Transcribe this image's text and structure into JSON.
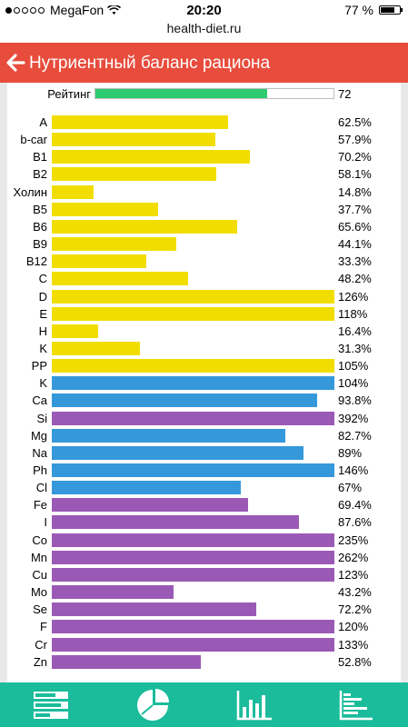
{
  "status_bar": {
    "carrier": "MegaFon",
    "time": "20:20",
    "battery": "77 %",
    "battery_level": 0.77,
    "signal_bars_filled": 1
  },
  "url": "health-diet.ru",
  "header": {
    "title": "Нутриентный баланс рациона",
    "back_icon": "arrow-left-icon",
    "color": "#e74c3c"
  },
  "rating": {
    "label": "Рейтинг",
    "value": "72",
    "level": 0.72,
    "color": "#2ecc71"
  },
  "colors": {
    "vitamin": "#f1de00",
    "mineral": "#3498db",
    "trace": "#9b59b6",
    "tabbar": "#1abc9c"
  },
  "nutrients": [
    {
      "label": "A",
      "value": "62.5%",
      "percent": 62.5,
      "group": "vitamin"
    },
    {
      "label": "b-car",
      "value": "57.9%",
      "percent": 57.9,
      "group": "vitamin"
    },
    {
      "label": "B1",
      "value": "70.2%",
      "percent": 70.2,
      "group": "vitamin"
    },
    {
      "label": "B2",
      "value": "58.1%",
      "percent": 58.1,
      "group": "vitamin"
    },
    {
      "label": "Холин",
      "value": "14.8%",
      "percent": 14.8,
      "group": "vitamin"
    },
    {
      "label": "B5",
      "value": "37.7%",
      "percent": 37.7,
      "group": "vitamin"
    },
    {
      "label": "B6",
      "value": "65.6%",
      "percent": 65.6,
      "group": "vitamin"
    },
    {
      "label": "B9",
      "value": "44.1%",
      "percent": 44.1,
      "group": "vitamin"
    },
    {
      "label": "B12",
      "value": "33.3%",
      "percent": 33.3,
      "group": "vitamin"
    },
    {
      "label": "C",
      "value": "48.2%",
      "percent": 48.2,
      "group": "vitamin"
    },
    {
      "label": "D",
      "value": "126%",
      "percent": 126,
      "group": "vitamin"
    },
    {
      "label": "E",
      "value": "118%",
      "percent": 118,
      "group": "vitamin"
    },
    {
      "label": "H",
      "value": "16.4%",
      "percent": 16.4,
      "group": "vitamin"
    },
    {
      "label": "K",
      "value": "31.3%",
      "percent": 31.3,
      "group": "vitamin"
    },
    {
      "label": "PP",
      "value": "105%",
      "percent": 105,
      "group": "vitamin"
    },
    {
      "label": "K",
      "value": "104%",
      "percent": 104,
      "group": "mineral"
    },
    {
      "label": "Ca",
      "value": "93.8%",
      "percent": 93.8,
      "group": "mineral"
    },
    {
      "label": "Si",
      "value": "392%",
      "percent": 392,
      "group": "trace"
    },
    {
      "label": "Mg",
      "value": "82.7%",
      "percent": 82.7,
      "group": "mineral"
    },
    {
      "label": "Na",
      "value": "89%",
      "percent": 89,
      "group": "mineral"
    },
    {
      "label": "Ph",
      "value": "146%",
      "percent": 146,
      "group": "mineral"
    },
    {
      "label": "Cl",
      "value": "67%",
      "percent": 67,
      "group": "mineral"
    },
    {
      "label": "Fe",
      "value": "69.4%",
      "percent": 69.4,
      "group": "trace"
    },
    {
      "label": "I",
      "value": "87.6%",
      "percent": 87.6,
      "group": "trace"
    },
    {
      "label": "Co",
      "value": "235%",
      "percent": 235,
      "group": "trace"
    },
    {
      "label": "Mn",
      "value": "262%",
      "percent": 262,
      "group": "trace"
    },
    {
      "label": "Cu",
      "value": "123%",
      "percent": 123,
      "group": "trace"
    },
    {
      "label": "Mo",
      "value": "43.2%",
      "percent": 43.2,
      "group": "trace"
    },
    {
      "label": "Se",
      "value": "72.2%",
      "percent": 72.2,
      "group": "trace"
    },
    {
      "label": "F",
      "value": "120%",
      "percent": 120,
      "group": "trace"
    },
    {
      "label": "Cr",
      "value": "133%",
      "percent": 133,
      "group": "trace"
    },
    {
      "label": "Zn",
      "value": "52.8%",
      "percent": 52.8,
      "group": "trace"
    }
  ],
  "tabs": [
    {
      "icon": "list-icon"
    },
    {
      "icon": "pie-chart-icon"
    },
    {
      "icon": "bar-chart-icon"
    },
    {
      "icon": "hbar-chart-icon"
    }
  ]
}
